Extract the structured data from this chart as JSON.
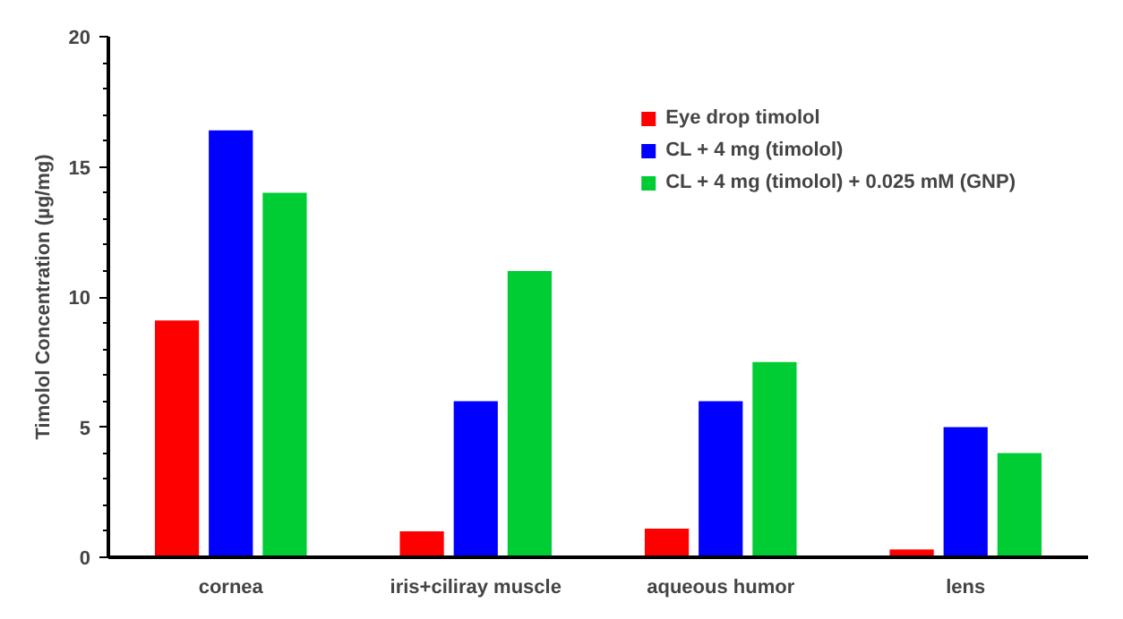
{
  "chart_data": {
    "type": "bar",
    "ylabel": "Timolol Concentration (µg/mg)",
    "categories": [
      "cornea",
      "iris+ciliray muscle",
      "aqueous humor",
      "lens"
    ],
    "series": [
      {
        "name": "Eye drop timolol",
        "color": "#ff0000",
        "values": [
          9.1,
          1.0,
          1.1,
          0.3
        ]
      },
      {
        "name": "CL + 4 mg (timolol)",
        "color": "#0000ff",
        "values": [
          16.4,
          6.0,
          6.0,
          5.0
        ]
      },
      {
        "name": "CL + 4 mg (timolol) + 0.025 mM (GNP)",
        "color": "#00cc33",
        "values": [
          14.0,
          11.0,
          7.5,
          4.0
        ]
      }
    ],
    "ylim": [
      0,
      20
    ],
    "yticks": [
      0,
      5,
      10,
      15,
      20
    ],
    "grid": false,
    "legend": "top right"
  }
}
